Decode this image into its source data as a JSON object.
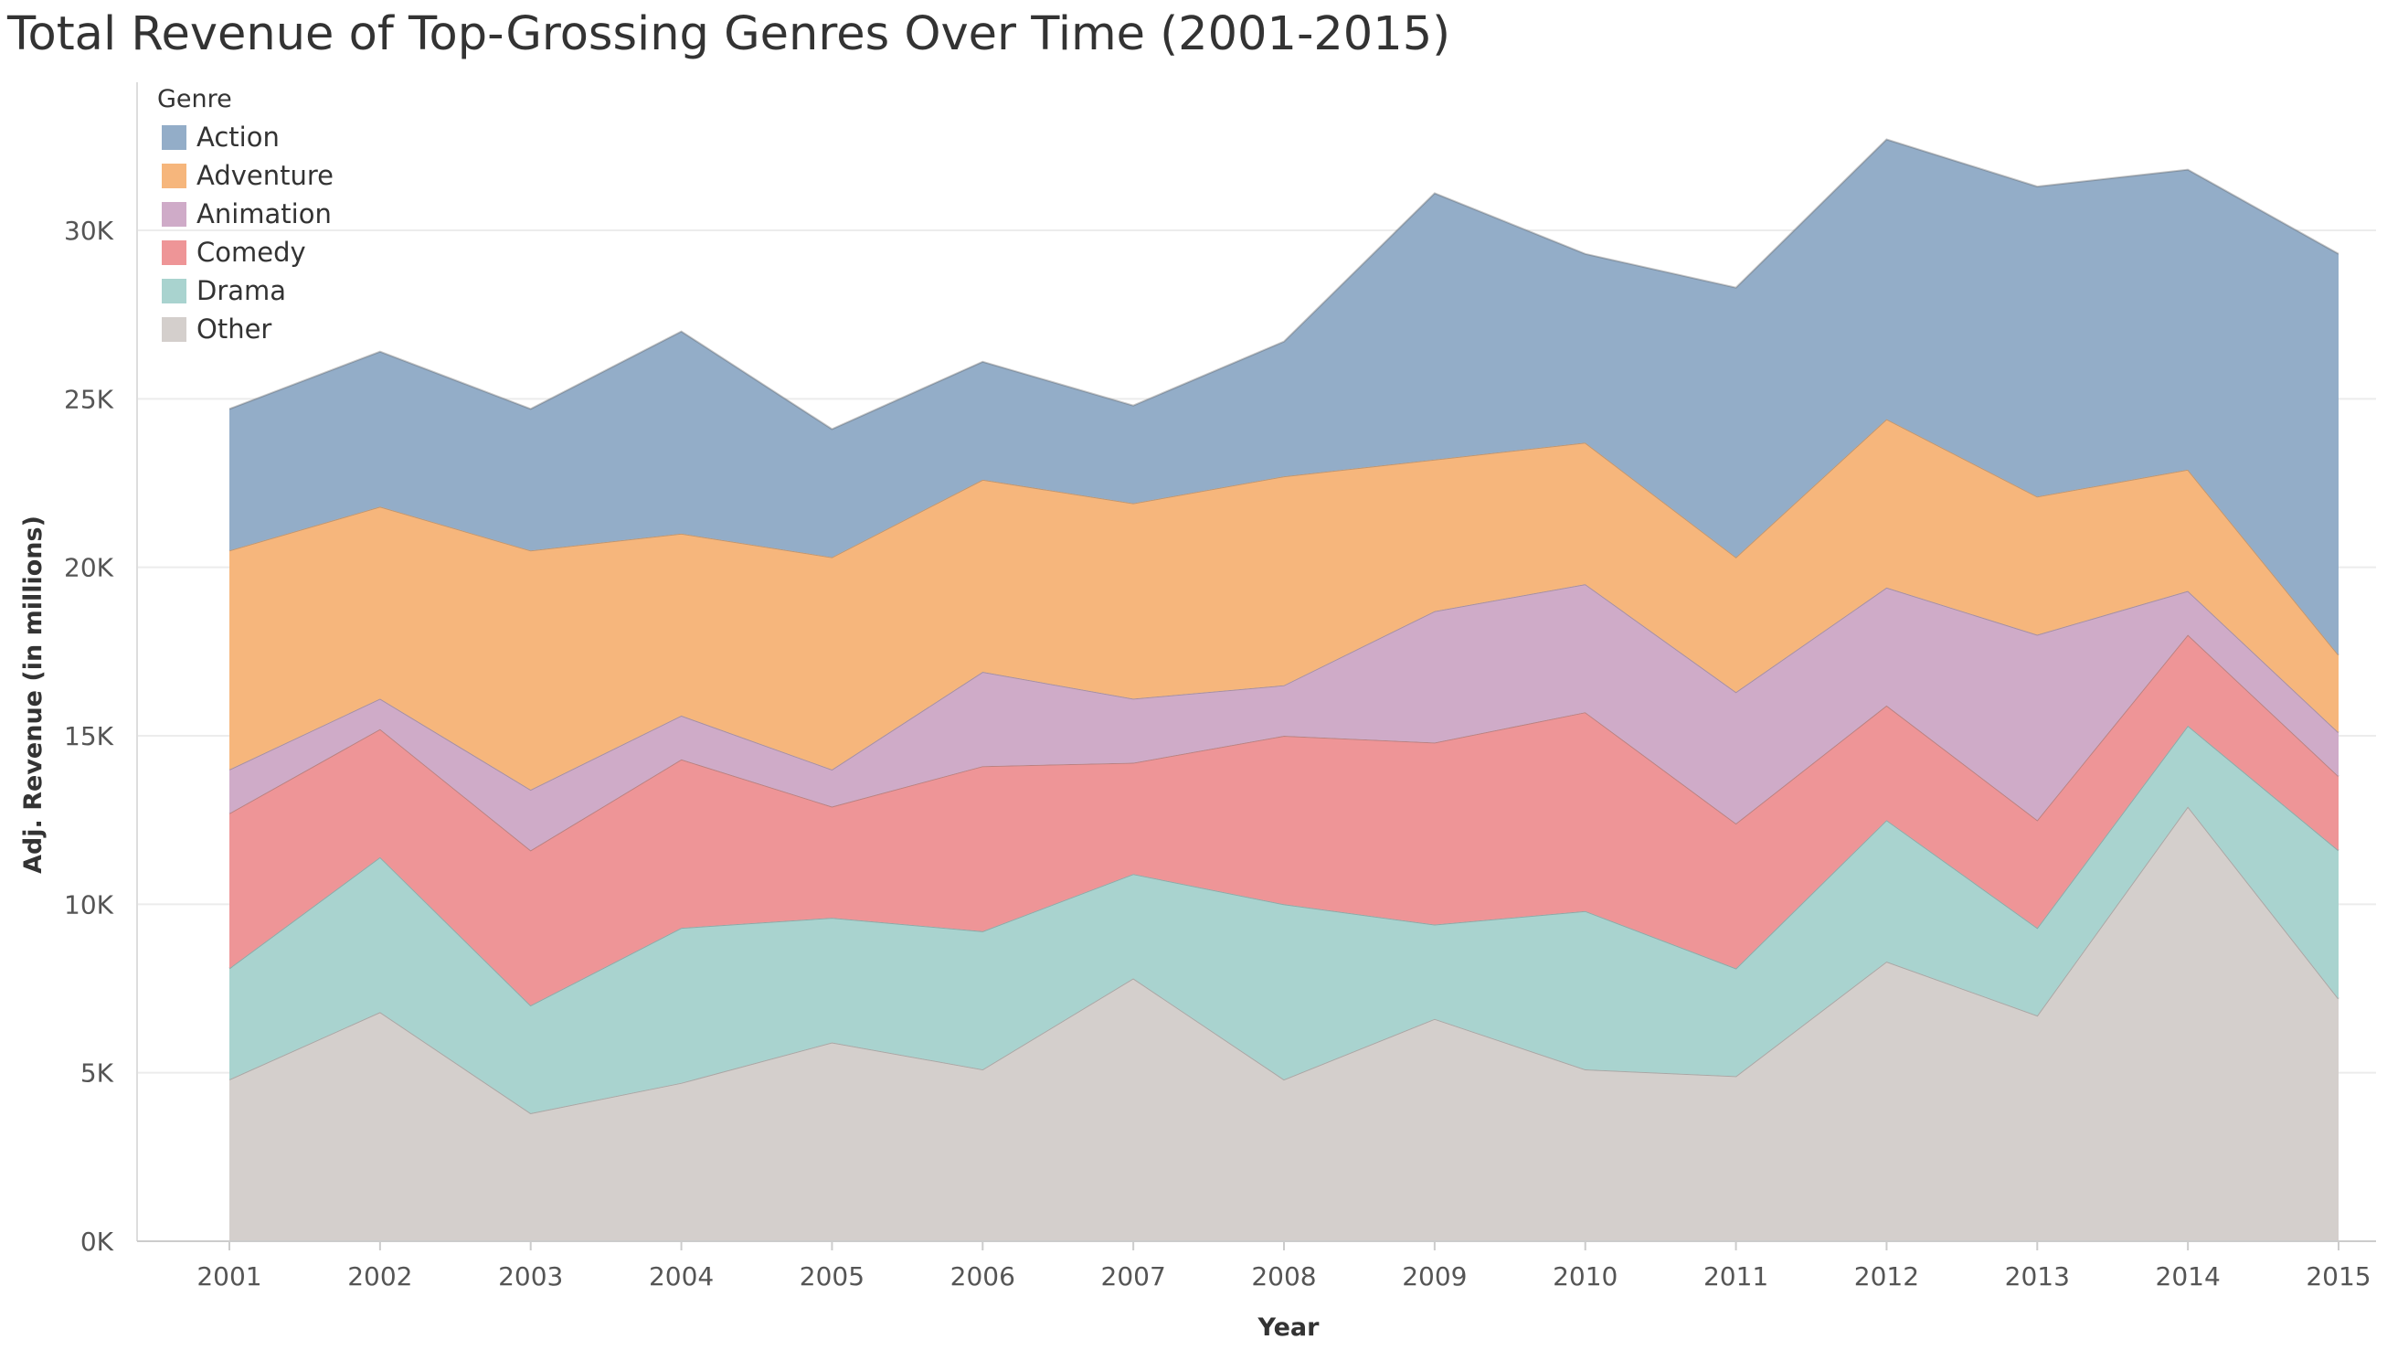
{
  "chart_data": {
    "type": "area",
    "stacked": true,
    "title": "Total Revenue of Top-Grossing Genres Over Time (2001-2015)",
    "xlabel": "Year",
    "ylabel": "Adj. Revenue (in millions)",
    "ylim": [
      0,
      34000
    ],
    "yticks": [
      0,
      5000,
      10000,
      15000,
      20000,
      25000,
      30000
    ],
    "ytick_labels": [
      "0K",
      "5K",
      "10K",
      "15K",
      "20K",
      "25K",
      "30K"
    ],
    "grid": true,
    "legend": {
      "title": "Genre",
      "position": "top-left"
    },
    "x": [
      "2001",
      "2002",
      "2003",
      "2004",
      "2005",
      "2006",
      "2007",
      "2008",
      "2009",
      "2010",
      "2011",
      "2012",
      "2013",
      "2014",
      "2015"
    ],
    "series": [
      {
        "name": "Other",
        "color": "#d4cfcc",
        "values": [
          4800,
          6800,
          3800,
          4700,
          5900,
          5100,
          7800,
          4800,
          6600,
          5100,
          4900,
          8300,
          6700,
          12900,
          7200
        ]
      },
      {
        "name": "Drama",
        "color": "#a9d3cf",
        "values": [
          3300,
          4600,
          3200,
          4600,
          3700,
          4100,
          3100,
          5200,
          2800,
          4700,
          3200,
          4200,
          2600,
          2400,
          4400
        ]
      },
      {
        "name": "Comedy",
        "color": "#ee9597",
        "values": [
          4600,
          3800,
          4600,
          5000,
          3300,
          4900,
          3300,
          5000,
          5400,
          5900,
          4300,
          3400,
          3200,
          2700,
          2200
        ]
      },
      {
        "name": "Animation",
        "color": "#cfabc8",
        "values": [
          1300,
          900,
          1800,
          1300,
          1100,
          2800,
          1900,
          1500,
          3900,
          3800,
          3900,
          3500,
          5500,
          1300,
          1300
        ]
      },
      {
        "name": "Adventure",
        "color": "#f6b67c",
        "values": [
          6500,
          5700,
          7100,
          5400,
          6300,
          5700,
          5800,
          6200,
          4500,
          4200,
          4000,
          5000,
          4100,
          3600,
          2300
        ]
      },
      {
        "name": "Action",
        "color": "#93adc8",
        "values": [
          4200,
          4600,
          4200,
          6000,
          3800,
          3500,
          2900,
          4000,
          7900,
          5600,
          8000,
          8300,
          9200,
          8900,
          11900
        ]
      }
    ],
    "legend_order": [
      "Action",
      "Adventure",
      "Animation",
      "Comedy",
      "Drama",
      "Other"
    ]
  }
}
